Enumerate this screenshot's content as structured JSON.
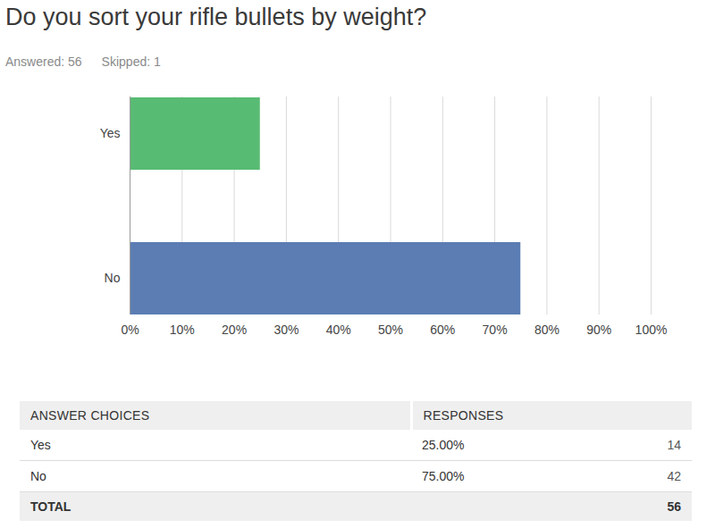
{
  "chart_data": {
    "type": "bar",
    "title": "Do you sort your rifle bullets by weight?",
    "subtitle": [
      "Answered: 56",
      "Skipped: 1"
    ],
    "orientation": "horizontal",
    "categories": [
      "Yes",
      "No"
    ],
    "values": [
      25,
      75
    ],
    "colors": [
      "#58bb73",
      "#5b7db4"
    ],
    "xlim": [
      0,
      100
    ],
    "xticks": [
      {
        "value": 0,
        "label": "0%"
      },
      {
        "value": 10,
        "label": "10%"
      },
      {
        "value": 20,
        "label": "20%"
      },
      {
        "value": 30,
        "label": "30%"
      },
      {
        "value": 40,
        "label": "40%"
      },
      {
        "value": 50,
        "label": "50%"
      },
      {
        "value": 60,
        "label": "60%"
      },
      {
        "value": 70,
        "label": "70%"
      },
      {
        "value": 80,
        "label": "80%"
      },
      {
        "value": 90,
        "label": "90%"
      },
      {
        "value": 100,
        "label": "100%"
      }
    ],
    "grid": true
  },
  "table": {
    "header": [
      "ANSWER CHOICES",
      "RESPONSES"
    ],
    "rows": [
      [
        "Yes",
        "25.00%",
        14
      ],
      [
        "No",
        "75.00%",
        42
      ]
    ],
    "total": [
      "TOTAL",
      56
    ]
  }
}
